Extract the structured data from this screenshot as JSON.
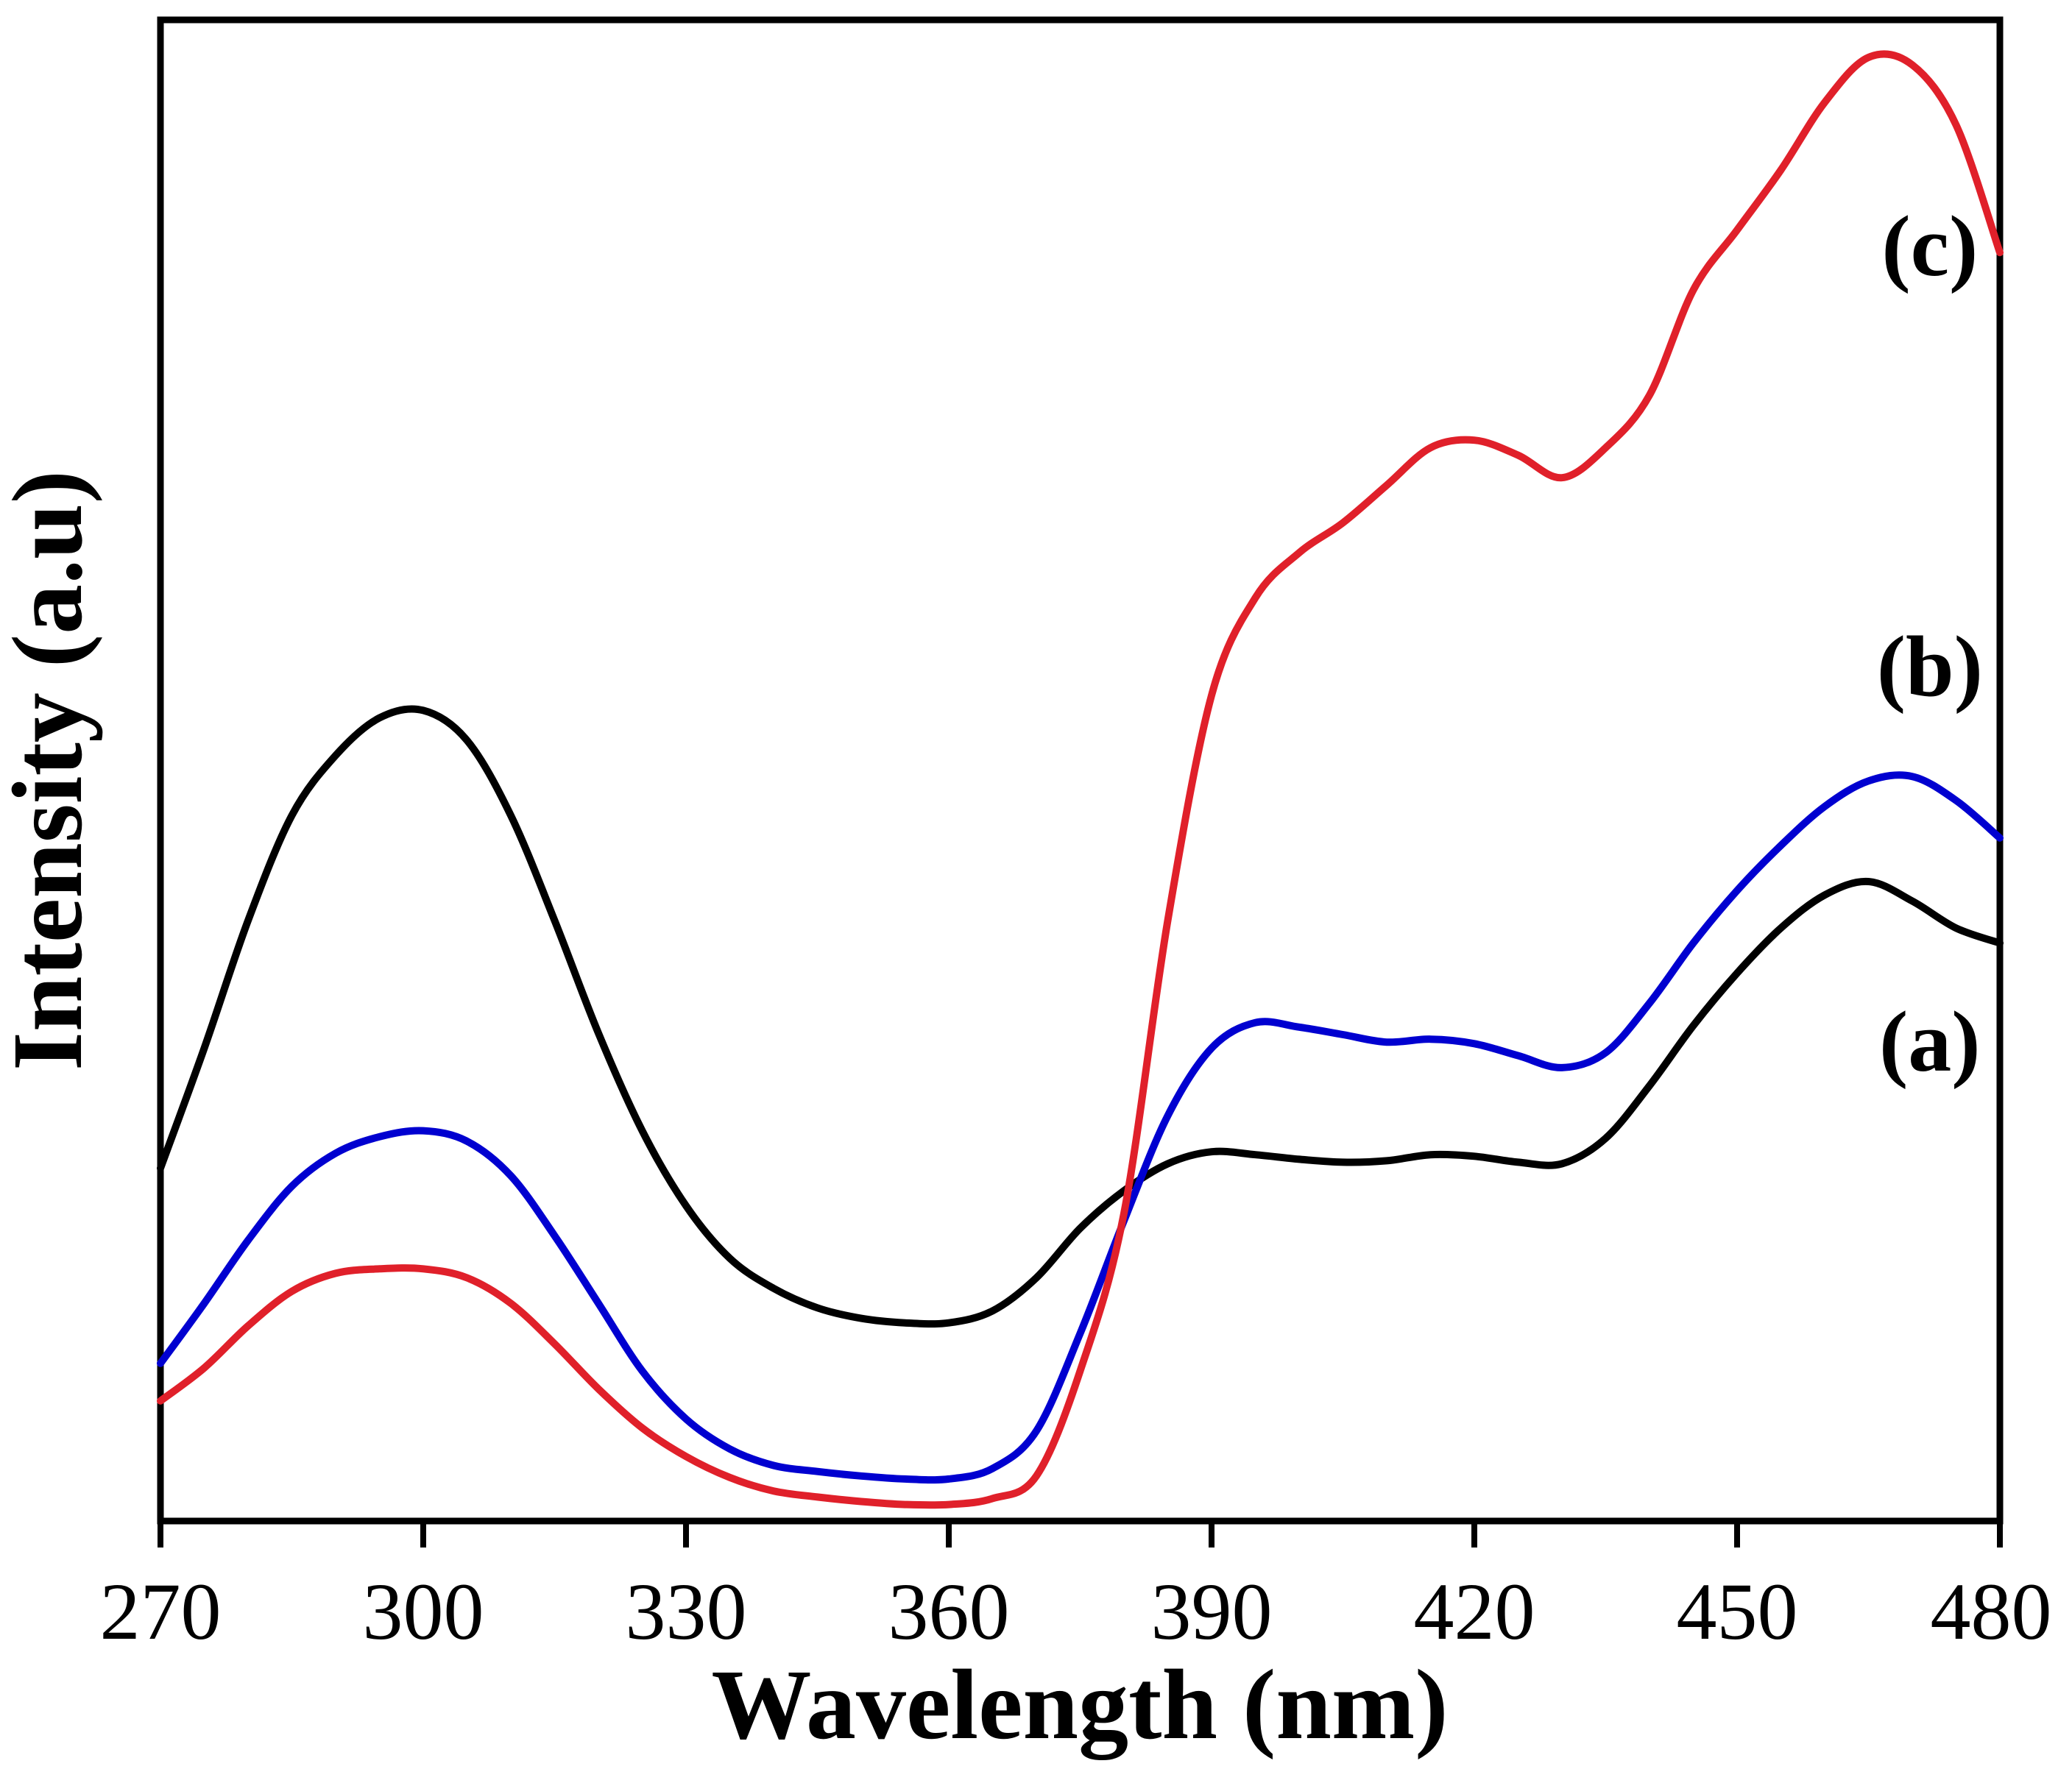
{
  "chart_data": {
    "type": "line",
    "title": "",
    "xlabel": "Wavelength (nm)",
    "ylabel": "Intensity (a.u)",
    "xlim": [
      270,
      480
    ],
    "ylim": [
      0,
      100
    ],
    "xticks": [
      270,
      300,
      330,
      360,
      390,
      420,
      450,
      480
    ],
    "xtick_labels": [
      "270",
      "300",
      "330",
      "360",
      "390",
      "420",
      "450",
      "480"
    ],
    "yticks_shown": false,
    "grid": false,
    "series": [
      {
        "name": "(a)",
        "color": "#000000",
        "x": [
          270,
          275,
          280,
          285,
          290,
          295,
          300,
          305,
          310,
          315,
          320,
          325,
          330,
          335,
          340,
          345,
          350,
          355,
          360,
          365,
          370,
          375,
          380,
          385,
          390,
          395,
          400,
          405,
          410,
          415,
          420,
          425,
          430,
          435,
          440,
          445,
          450,
          455,
          460,
          465,
          470,
          475,
          480
        ],
        "values": [
          23.5,
          31.5,
          40.0,
          47.0,
          51.0,
          53.5,
          54.0,
          52.0,
          47.0,
          40.0,
          32.5,
          26.0,
          21.0,
          17.5,
          15.5,
          14.2,
          13.5,
          13.2,
          13.2,
          14.0,
          16.2,
          19.5,
          22.0,
          23.8,
          24.6,
          24.4,
          24.1,
          23.9,
          24.0,
          24.4,
          24.3,
          23.9,
          23.8,
          25.5,
          29.0,
          33.0,
          36.5,
          39.5,
          41.7,
          42.6,
          41.3,
          39.5,
          38.5
        ]
      },
      {
        "name": "(b)",
        "color": "#0000d0",
        "x": [
          270,
          275,
          280,
          285,
          290,
          295,
          300,
          305,
          310,
          315,
          320,
          325,
          330,
          335,
          340,
          345,
          350,
          355,
          360,
          365,
          370,
          375,
          380,
          385,
          390,
          395,
          400,
          405,
          410,
          415,
          420,
          425,
          430,
          435,
          440,
          445,
          450,
          455,
          460,
          465,
          470,
          475,
          480
        ],
        "values": [
          10.5,
          14.5,
          18.7,
          22.3,
          24.5,
          25.6,
          26.0,
          25.3,
          23.0,
          19.0,
          14.5,
          10.0,
          6.8,
          4.8,
          3.7,
          3.3,
          3.0,
          2.8,
          2.8,
          3.5,
          6.0,
          12.5,
          20.0,
          27.0,
          31.5,
          33.2,
          32.9,
          32.4,
          31.9,
          32.1,
          31.8,
          31.0,
          30.2,
          31.2,
          34.5,
          38.5,
          42.0,
          45.0,
          47.6,
          49.3,
          49.6,
          48.0,
          45.5
        ]
      },
      {
        "name": "(c)",
        "color": "#e0202a",
        "x": [
          270,
          275,
          280,
          285,
          290,
          295,
          300,
          305,
          310,
          315,
          320,
          325,
          330,
          335,
          340,
          345,
          350,
          355,
          360,
          365,
          370,
          375,
          380,
          385,
          390,
          395,
          400,
          405,
          410,
          415,
          420,
          425,
          430,
          435,
          440,
          445,
          450,
          455,
          460,
          465,
          470,
          475,
          480
        ],
        "values": [
          8.0,
          10.2,
          13.0,
          15.3,
          16.5,
          16.8,
          16.8,
          16.2,
          14.5,
          11.8,
          8.8,
          6.2,
          4.3,
          2.9,
          2.0,
          1.6,
          1.3,
          1.1,
          1.1,
          1.5,
          3.0,
          10.0,
          20.5,
          40.0,
          55.0,
          61.5,
          64.5,
          66.5,
          69.0,
          71.5,
          72.0,
          71.0,
          69.5,
          71.5,
          75.0,
          82.0,
          86.0,
          90.0,
          94.5,
          97.5,
          97.0,
          93.0,
          84.5
        ]
      }
    ],
    "annotations": [
      {
        "text": "(c)",
        "x": 472,
        "y": 83
      },
      {
        "text": "(b)",
        "x": 472,
        "y": 55
      },
      {
        "text": "(a)",
        "x": 472,
        "y": 30
      }
    ]
  }
}
